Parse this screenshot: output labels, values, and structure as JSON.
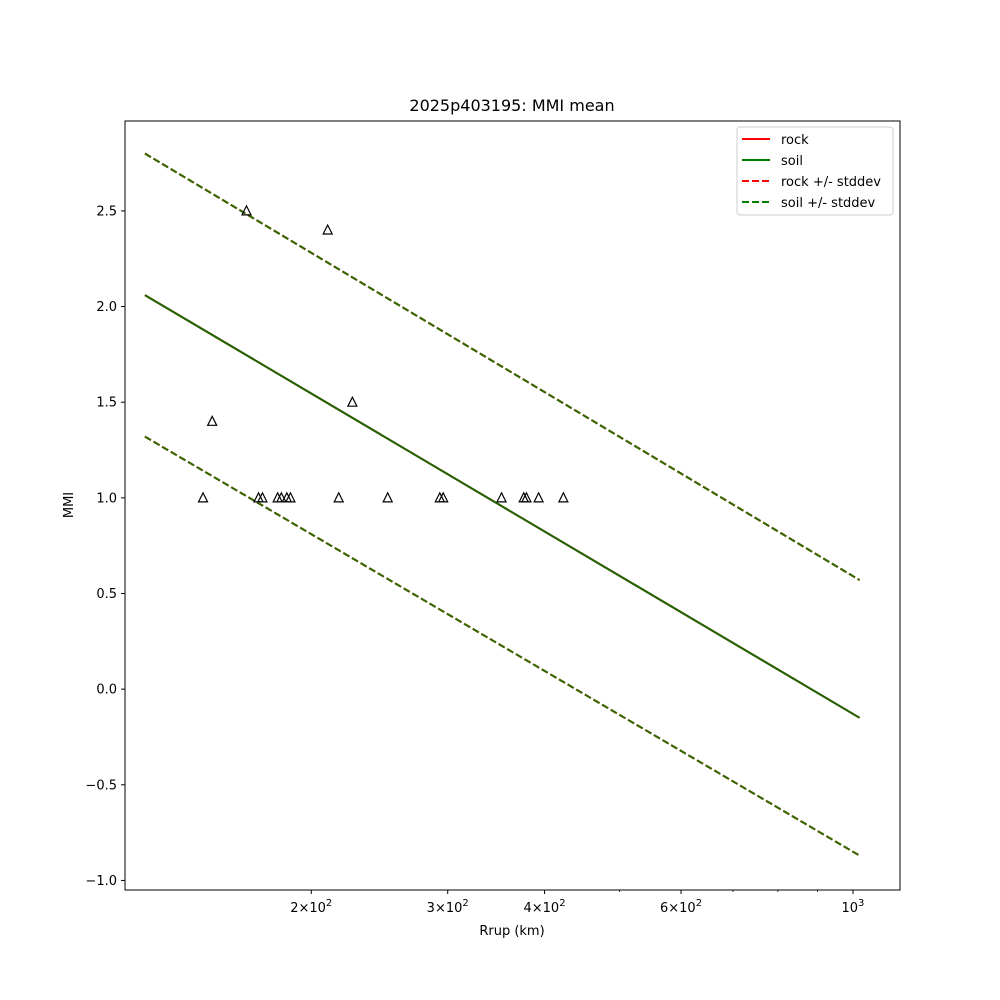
{
  "chart_data": {
    "type": "line",
    "title": "2025p403195: MMI mean",
    "xlabel": "Rrup (km)",
    "ylabel": "MMI",
    "xscale": "log",
    "xlim": [
      115,
      1150
    ],
    "ylim": [
      -1.05,
      2.97
    ],
    "yticks": [
      "−1.0",
      "−0.5",
      "0.0",
      "0.5",
      "1.0",
      "1.5",
      "2.0",
      "2.5"
    ],
    "ytick_values": [
      -1.0,
      -0.5,
      0.0,
      0.5,
      1.0,
      1.5,
      2.0,
      2.5
    ],
    "xticks_major": [
      {
        "value": 200,
        "base": "2",
        "exp": "2"
      },
      {
        "value": 300,
        "base": "3",
        "exp": "2"
      },
      {
        "value": 400,
        "base": "4",
        "exp": "2"
      },
      {
        "value": 600,
        "base": "6",
        "exp": "2"
      },
      {
        "value": 1000,
        "base": "10",
        "exp": "3"
      }
    ],
    "xticks_minor": [
      500,
      700,
      800,
      900
    ],
    "grid": false,
    "legend_position": "top-right",
    "legend": [
      {
        "label": "rock",
        "color": "#ff0000",
        "style": "solid"
      },
      {
        "label": "soil",
        "color": "#008000",
        "style": "solid"
      },
      {
        "label": "rock +/- stddev",
        "color": "#ff0000",
        "style": "dashed"
      },
      {
        "label": "soil +/- stddev",
        "color": "#008000",
        "style": "dashed"
      }
    ],
    "series": [
      {
        "name": "rock",
        "color": "#ff0000",
        "style": "solid",
        "x": [
          122,
          1020
        ],
        "y": [
          2.06,
          -0.15
        ]
      },
      {
        "name": "soil",
        "color": "#1a6600",
        "style": "solid",
        "x": [
          122,
          1020
        ],
        "y": [
          2.06,
          -0.15
        ]
      },
      {
        "name": "rock +/- stddev",
        "color": "#ff0000",
        "style": "dashed",
        "x": [
          122,
          1020
        ],
        "y": [
          2.8,
          0.57
        ]
      },
      {
        "name": "rock +/- stddev",
        "color": "#ff0000",
        "style": "dashed",
        "x": [
          122,
          1020
        ],
        "y": [
          1.32,
          -0.87
        ]
      },
      {
        "name": "soil +/- stddev",
        "color": "#2d6a00",
        "style": "dashed",
        "x": [
          122,
          1020
        ],
        "y": [
          2.8,
          0.57
        ]
      },
      {
        "name": "soil +/- stddev",
        "color": "#2d6a00",
        "style": "dashed",
        "x": [
          122,
          1020
        ],
        "y": [
          1.32,
          -0.87
        ]
      }
    ],
    "observations": {
      "marker": "triangle-open",
      "color": "#000000",
      "points": [
        {
          "x": 165,
          "y": 2.5
        },
        {
          "x": 210,
          "y": 2.4
        },
        {
          "x": 226,
          "y": 1.5
        },
        {
          "x": 149,
          "y": 1.4
        },
        {
          "x": 145,
          "y": 1.0
        },
        {
          "x": 171,
          "y": 1.0
        },
        {
          "x": 173,
          "y": 1.0
        },
        {
          "x": 181,
          "y": 1.0
        },
        {
          "x": 183,
          "y": 1.0
        },
        {
          "x": 186,
          "y": 1.0
        },
        {
          "x": 188,
          "y": 1.0
        },
        {
          "x": 217,
          "y": 1.0
        },
        {
          "x": 251,
          "y": 1.0
        },
        {
          "x": 293,
          "y": 1.0
        },
        {
          "x": 296,
          "y": 1.0
        },
        {
          "x": 352,
          "y": 1.0
        },
        {
          "x": 376,
          "y": 1.0
        },
        {
          "x": 379,
          "y": 1.0
        },
        {
          "x": 393,
          "y": 1.0
        },
        {
          "x": 423,
          "y": 1.0
        }
      ]
    }
  }
}
